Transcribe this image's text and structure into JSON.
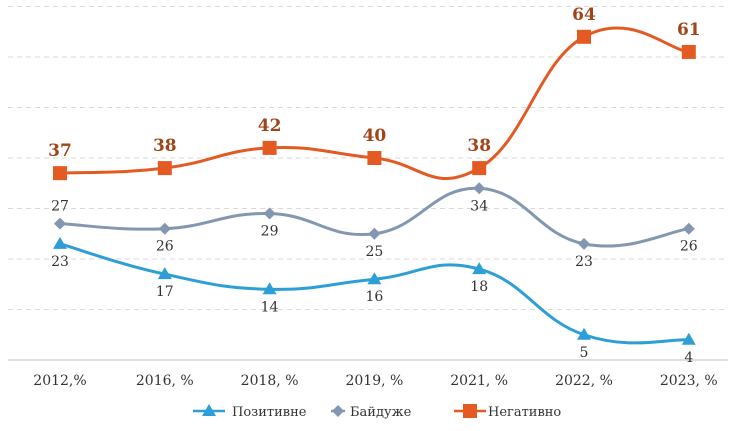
{
  "chart_data": {
    "type": "line",
    "title": "",
    "xlabel": "",
    "ylabel": "",
    "categories": [
      "2012,%",
      "2016, %",
      "2018, %",
      "2019, %",
      "2021, %",
      "2022, %",
      "2023, %"
    ],
    "ylim": [
      0,
      70
    ],
    "grid": true,
    "legend": "bottom",
    "series": [
      {
        "name": "Позитивне",
        "values": [
          23,
          17,
          14,
          16,
          18,
          5,
          4
        ],
        "color": "#2e9fd6",
        "marker": "triangle",
        "label_position": "below"
      },
      {
        "name": "Байдуже",
        "values": [
          27,
          26,
          29,
          25,
          34,
          23,
          26
        ],
        "color": "#8497b0",
        "marker": "diamond",
        "label_position": "mixed"
      },
      {
        "name": "Негативно",
        "values": [
          37,
          38,
          42,
          40,
          38,
          64,
          61
        ],
        "color": "#e35a23",
        "marker": "square",
        "label_position": "above"
      }
    ]
  }
}
